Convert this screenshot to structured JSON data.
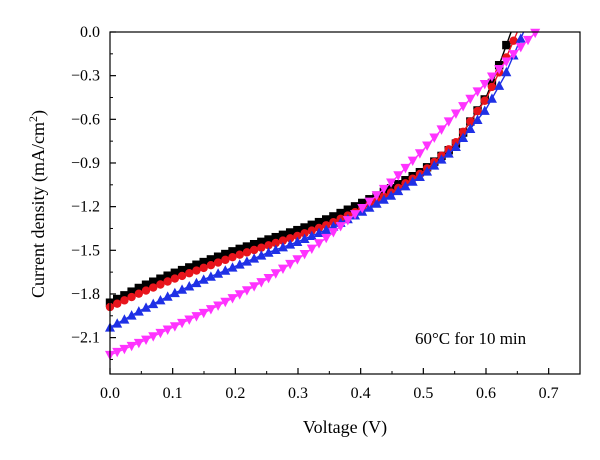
{
  "chart_data": {
    "type": "line",
    "title": "",
    "xlabel": "Voltage (V)",
    "ylabel": "Current density (mA/cm2)",
    "xlim": [
      0.0,
      0.75
    ],
    "ylim": [
      -2.35,
      0.0
    ],
    "x_ticks": [
      0.0,
      0.1,
      0.2,
      0.3,
      0.4,
      0.5,
      0.6,
      0.7
    ],
    "x_tick_labels": [
      "0.0",
      "0.1",
      "0.2",
      "0.3",
      "0.4",
      "0.5",
      "0.6",
      "0.7"
    ],
    "y_ticks": [
      0.0,
      -0.3,
      -0.6,
      -0.9,
      -1.2,
      -1.5,
      -1.8,
      -2.1
    ],
    "y_tick_labels": [
      "0.0",
      "−0.3",
      "−0.6",
      "−0.9",
      "−1.2",
      "−1.5",
      "−1.8",
      "−2.1"
    ],
    "grid": false,
    "annotation": "60°C for 10 min",
    "series": [
      {
        "color": "#000000",
        "marker": "square",
        "points": [
          [
            0.0,
            -1.86
          ],
          [
            0.05,
            -1.75
          ],
          [
            0.1,
            -1.66
          ],
          [
            0.15,
            -1.58
          ],
          [
            0.2,
            -1.5
          ],
          [
            0.25,
            -1.43
          ],
          [
            0.3,
            -1.36
          ],
          [
            0.35,
            -1.28
          ],
          [
            0.4,
            -1.18
          ],
          [
            0.45,
            -1.07
          ],
          [
            0.5,
            -0.95
          ],
          [
            0.55,
            -0.78
          ],
          [
            0.6,
            -0.45
          ],
          [
            0.62,
            -0.24
          ],
          [
            0.64,
            0.0
          ]
        ]
      },
      {
        "color": "#e8141c",
        "marker": "circle",
        "points": [
          [
            0.0,
            -1.89
          ],
          [
            0.05,
            -1.79
          ],
          [
            0.1,
            -1.7
          ],
          [
            0.15,
            -1.62
          ],
          [
            0.2,
            -1.54
          ],
          [
            0.25,
            -1.47
          ],
          [
            0.3,
            -1.4
          ],
          [
            0.35,
            -1.32
          ],
          [
            0.4,
            -1.22
          ],
          [
            0.45,
            -1.1
          ],
          [
            0.5,
            -0.96
          ],
          [
            0.55,
            -0.77
          ],
          [
            0.6,
            -0.46
          ],
          [
            0.63,
            -0.2
          ],
          [
            0.65,
            0.0
          ]
        ]
      },
      {
        "color": "#1f30e6",
        "marker": "triangle-up",
        "points": [
          [
            0.0,
            -2.03
          ],
          [
            0.05,
            -1.91
          ],
          [
            0.1,
            -1.8
          ],
          [
            0.15,
            -1.7
          ],
          [
            0.2,
            -1.61
          ],
          [
            0.25,
            -1.52
          ],
          [
            0.3,
            -1.44
          ],
          [
            0.35,
            -1.35
          ],
          [
            0.4,
            -1.24
          ],
          [
            0.45,
            -1.12
          ],
          [
            0.5,
            -0.98
          ],
          [
            0.55,
            -0.8
          ],
          [
            0.6,
            -0.53
          ],
          [
            0.63,
            -0.3
          ],
          [
            0.66,
            0.0
          ]
        ]
      },
      {
        "color": "#ff33ff",
        "marker": "triangle-down",
        "points": [
          [
            0.0,
            -2.22
          ],
          [
            0.05,
            -2.13
          ],
          [
            0.1,
            -2.03
          ],
          [
            0.15,
            -1.93
          ],
          [
            0.2,
            -1.82
          ],
          [
            0.25,
            -1.7
          ],
          [
            0.3,
            -1.56
          ],
          [
            0.35,
            -1.4
          ],
          [
            0.4,
            -1.22
          ],
          [
            0.45,
            -1.03
          ],
          [
            0.5,
            -0.81
          ],
          [
            0.55,
            -0.57
          ],
          [
            0.6,
            -0.35
          ],
          [
            0.64,
            -0.17
          ],
          [
            0.68,
            0.0
          ]
        ]
      }
    ]
  }
}
